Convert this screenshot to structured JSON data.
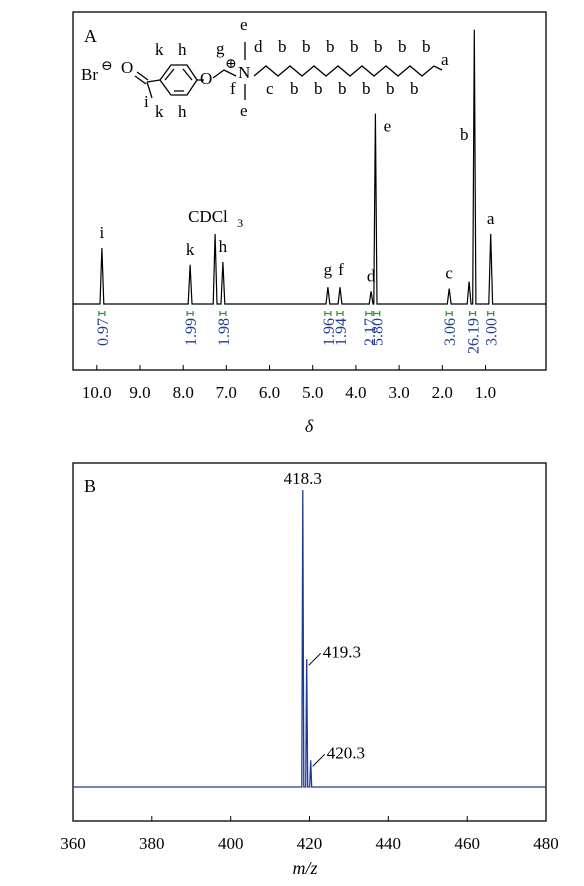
{
  "colors": {
    "frame": "#000000",
    "nmr_trace": "#000000",
    "integral_text": "#1f3f8f",
    "integral_bracket": "#2e9a2e",
    "ms_trace": "#1f3a93"
  },
  "structure": {
    "counterion": "Br",
    "charge_minus": "⊖",
    "charge_plus": "⊕",
    "oxygen": "O",
    "nitrogen": "N",
    "labels": {
      "top_k": "k",
      "top_h": "h",
      "bot_k": "k",
      "bot_h": "h",
      "i": "i",
      "g": "g",
      "f": "f",
      "e_top": "e",
      "e_bot": "e",
      "d": "d",
      "a": "a"
    },
    "b_label": "b",
    "c_label": "c"
  },
  "chart_data": [
    {
      "type": "line",
      "panel_label": "A",
      "xlabel": "δ",
      "x_reversed": true,
      "xlim": [
        10.55,
        -0.4
      ],
      "xticks": [
        "10.0",
        "9.0",
        "8.0",
        "7.0",
        "6.0",
        "5.0",
        "4.0",
        "3.0",
        "2.0",
        "1.0"
      ],
      "xtick_values": [
        10.0,
        9.0,
        8.0,
        7.0,
        6.0,
        5.0,
        4.0,
        3.0,
        2.0,
        1.0
      ],
      "solvent_label": {
        "text": "CDCl",
        "subscript": "3",
        "ppm": 7.26
      },
      "peaks": [
        {
          "label": "i",
          "ppm": 9.88,
          "height": 0.2
        },
        {
          "label": "k",
          "ppm": 7.84,
          "height": 0.14
        },
        {
          "label": "",
          "ppm": 7.26,
          "height": 0.25
        },
        {
          "label": "h",
          "ppm": 7.08,
          "height": 0.15
        },
        {
          "label": "g",
          "ppm": 4.65,
          "height": 0.06
        },
        {
          "label": "f",
          "ppm": 4.37,
          "height": 0.06
        },
        {
          "label": "d",
          "ppm": 3.65,
          "height": 0.045
        },
        {
          "label": "e",
          "ppm": 3.55,
          "height": 0.68
        },
        {
          "label": "c",
          "ppm": 1.84,
          "height": 0.055
        },
        {
          "label": "",
          "ppm": 1.38,
          "height": 0.08
        },
        {
          "label": "b",
          "ppm": 1.26,
          "height": 0.98
        },
        {
          "label": "a",
          "ppm": 0.88,
          "height": 0.25
        }
      ],
      "integrals": [
        {
          "value": "0.97",
          "ppm": 9.88
        },
        {
          "value": "1.99",
          "ppm": 7.84
        },
        {
          "value": "1.98",
          "ppm": 7.08
        },
        {
          "value": "1.96",
          "ppm": 4.65
        },
        {
          "value": "1.94",
          "ppm": 4.37
        },
        {
          "value": "2.17",
          "ppm": 3.7
        },
        {
          "value": "5.80",
          "ppm": 3.52
        },
        {
          "value": "3.06",
          "ppm": 1.84
        },
        {
          "value": "26.19",
          "ppm": 1.3
        },
        {
          "value": "3.00",
          "ppm": 0.88
        }
      ]
    },
    {
      "type": "line",
      "panel_label": "B",
      "xlabel": "m/z",
      "xlim": [
        360,
        480
      ],
      "xticks": [
        "360",
        "380",
        "400",
        "420",
        "440",
        "460",
        "480"
      ],
      "xtick_values": [
        360,
        380,
        400,
        420,
        440,
        460,
        480
      ],
      "peaks": [
        {
          "mz": 418.3,
          "intensity": 100,
          "label": "418.3"
        },
        {
          "mz": 419.3,
          "intensity": 43,
          "label": "419.3"
        },
        {
          "mz": 420.3,
          "intensity": 9,
          "label": "420.3"
        }
      ]
    }
  ]
}
